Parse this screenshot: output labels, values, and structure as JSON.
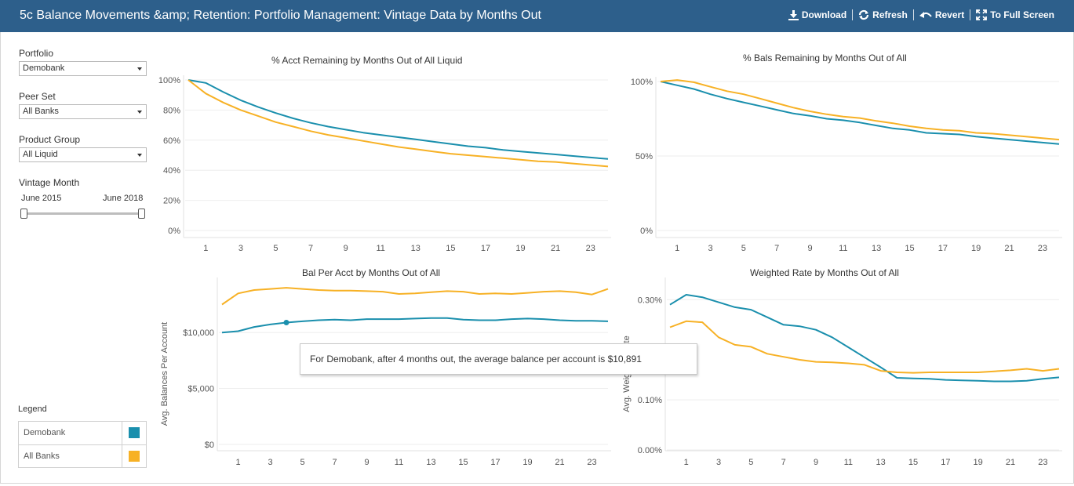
{
  "header": {
    "title": "5c Balance Movements &amp; Retention: Portfolio Management: Vintage Data by Months Out",
    "actions": {
      "download": "Download",
      "refresh": "Refresh",
      "revert": "Revert",
      "fullscreen": "To Full Screen"
    }
  },
  "filters": {
    "portfolio": {
      "label": "Portfolio",
      "value": "Demobank"
    },
    "peer_set": {
      "label": "Peer Set",
      "value": "All Banks"
    },
    "product_group": {
      "label": "Product Group",
      "value": "All Liquid"
    },
    "vintage_month": {
      "label": "Vintage Month",
      "start": "June 2015",
      "end": "June 2018"
    }
  },
  "legend": {
    "title": "Legend",
    "items": [
      {
        "label": "Demobank",
        "color": "#1a8fad"
      },
      {
        "label": "All Banks",
        "color": "#f7b125"
      }
    ]
  },
  "tooltip": {
    "prefix": "For ",
    "portfolio": "Demobank",
    "middle1": ", after ",
    "months": "4",
    "middle2": " months out, the average balance per account is ",
    "value": "$10,891"
  },
  "colors": {
    "demobank": "#1a8fad",
    "allbanks": "#f7b125",
    "grid": "#eeeeee"
  },
  "chart_data": [
    {
      "type": "line",
      "title": "% Acct Remaining by Months Out of  All Liquid",
      "x": [
        0,
        1,
        2,
        3,
        4,
        5,
        6,
        7,
        8,
        9,
        10,
        11,
        12,
        13,
        14,
        15,
        16,
        17,
        18,
        19,
        20,
        21,
        22,
        23,
        24
      ],
      "ylim": [
        0,
        100
      ],
      "yticks": [
        0,
        20,
        40,
        60,
        80,
        100
      ],
      "ytick_labels": [
        "0%",
        "20%",
        "40%",
        "60%",
        "80%",
        "100%"
      ],
      "xtick_labels": [
        "1",
        "3",
        "5",
        "7",
        "9",
        "11",
        "13",
        "15",
        "17",
        "19",
        "21",
        "23"
      ],
      "xtick_values": [
        1,
        3,
        5,
        7,
        9,
        11,
        13,
        15,
        17,
        19,
        21,
        23
      ],
      "series": [
        {
          "name": "Demobank",
          "values": [
            100,
            98,
            92,
            86.5,
            82,
            78,
            74.5,
            71.5,
            69,
            67,
            65,
            63.5,
            62,
            60.5,
            59,
            57.5,
            56,
            55,
            53.5,
            52.5,
            51.5,
            50.5,
            49.5,
            48.5,
            47.5
          ]
        },
        {
          "name": "All Banks",
          "values": [
            100,
            91,
            85,
            80,
            76,
            72,
            69,
            66,
            63.5,
            61.5,
            59.5,
            57.5,
            55.5,
            54,
            52.5,
            51,
            50,
            49,
            48,
            47,
            46,
            45.5,
            44.5,
            43.5,
            42.5
          ]
        }
      ]
    },
    {
      "type": "line",
      "title": "% Bals Remaining by Months Out of All",
      "x": [
        0,
        1,
        2,
        3,
        4,
        5,
        6,
        7,
        8,
        9,
        10,
        11,
        12,
        13,
        14,
        15,
        16,
        17,
        18,
        19,
        20,
        21,
        22,
        23,
        24
      ],
      "ylim": [
        0,
        100
      ],
      "yticks": [
        0,
        50,
        100
      ],
      "ytick_labels": [
        "0%",
        "50%",
        "100%"
      ],
      "xtick_labels": [
        "1",
        "3",
        "5",
        "7",
        "9",
        "11",
        "13",
        "15",
        "17",
        "19",
        "21",
        "23"
      ],
      "xtick_values": [
        1,
        3,
        5,
        7,
        9,
        11,
        13,
        15,
        17,
        19,
        21,
        23
      ],
      "series": [
        {
          "name": "Demobank",
          "values": [
            100,
            97.5,
            95,
            91.5,
            88.5,
            86,
            83.5,
            81,
            78.5,
            77,
            75,
            74,
            72.5,
            70.5,
            68.5,
            67.5,
            65.5,
            65,
            64.5,
            63,
            62,
            61,
            60,
            59,
            58
          ]
        },
        {
          "name": "All Banks",
          "values": [
            100,
            101,
            99.5,
            96.5,
            93.5,
            91.5,
            88.5,
            85.5,
            82.5,
            80,
            78,
            76.5,
            75.5,
            73.5,
            72,
            70,
            68.5,
            67.5,
            67,
            65.5,
            65,
            64,
            63,
            62,
            61
          ]
        }
      ]
    },
    {
      "type": "line",
      "title": "Bal Per Acct by Months Out of All",
      "ylabel": "Avg. Balances Per Account",
      "x": [
        0,
        1,
        2,
        3,
        4,
        5,
        6,
        7,
        8,
        9,
        10,
        11,
        12,
        13,
        14,
        15,
        16,
        17,
        18,
        19,
        20,
        21,
        22,
        23,
        24
      ],
      "ylim": [
        -500,
        14500
      ],
      "yticks": [
        0,
        5000,
        10000
      ],
      "ytick_labels": [
        "$0",
        "$5,000",
        "$10,000"
      ],
      "xtick_labels": [
        "1",
        "3",
        "5",
        "7",
        "9",
        "11",
        "13",
        "15",
        "17",
        "19",
        "21",
        "23"
      ],
      "xtick_values": [
        1,
        3,
        5,
        7,
        9,
        11,
        13,
        15,
        17,
        19,
        21,
        23
      ],
      "highlight": {
        "series": 0,
        "x": 4
      },
      "series": [
        {
          "name": "Demobank",
          "values": [
            10000,
            10120,
            10500,
            10720,
            10891,
            11000,
            11100,
            11150,
            11100,
            11200,
            11200,
            11200,
            11250,
            11300,
            11300,
            11150,
            11100,
            11100,
            11200,
            11250,
            11200,
            11100,
            11050,
            11050,
            11000
          ]
        },
        {
          "name": "All Banks",
          "values": [
            12500,
            13500,
            13800,
            13900,
            14000,
            13900,
            13800,
            13750,
            13750,
            13700,
            13650,
            13450,
            13500,
            13600,
            13700,
            13650,
            13450,
            13500,
            13450,
            13550,
            13650,
            13700,
            13600,
            13400,
            13900
          ]
        }
      ]
    },
    {
      "type": "line",
      "title": "Weighted Rate by Months Out of All",
      "ylabel": "Avg. Weighted Rate",
      "x": [
        0,
        1,
        2,
        3,
        4,
        5,
        6,
        7,
        8,
        9,
        10,
        11,
        12,
        13,
        14,
        15,
        16,
        17,
        18,
        19,
        20,
        21,
        22,
        23,
        24
      ],
      "ylim": [
        0,
        0.335
      ],
      "yticks": [
        0,
        0.1,
        0.3
      ],
      "ytick_labels": [
        "0.00%",
        "0.10%",
        "0.30%"
      ],
      "xtick_labels": [
        "1",
        "3",
        "5",
        "7",
        "9",
        "11",
        "13",
        "15",
        "17",
        "19",
        "21",
        "23"
      ],
      "xtick_values": [
        1,
        3,
        5,
        7,
        9,
        11,
        13,
        15,
        17,
        19,
        21,
        23
      ],
      "series": [
        {
          "name": "Demobank",
          "values": [
            0.29,
            0.31,
            0.305,
            0.295,
            0.285,
            0.28,
            0.265,
            0.25,
            0.247,
            0.24,
            0.225,
            0.205,
            0.185,
            0.165,
            0.144,
            0.143,
            0.142,
            0.14,
            0.139,
            0.138,
            0.137,
            0.137,
            0.138,
            0.142,
            0.145
          ]
        },
        {
          "name": "All Banks",
          "values": [
            0.245,
            0.257,
            0.255,
            0.225,
            0.21,
            0.206,
            0.192,
            0.186,
            0.18,
            0.176,
            0.175,
            0.173,
            0.17,
            0.158,
            0.155,
            0.154,
            0.155,
            0.155,
            0.155,
            0.155,
            0.157,
            0.159,
            0.162,
            0.158,
            0.162
          ]
        }
      ]
    }
  ]
}
